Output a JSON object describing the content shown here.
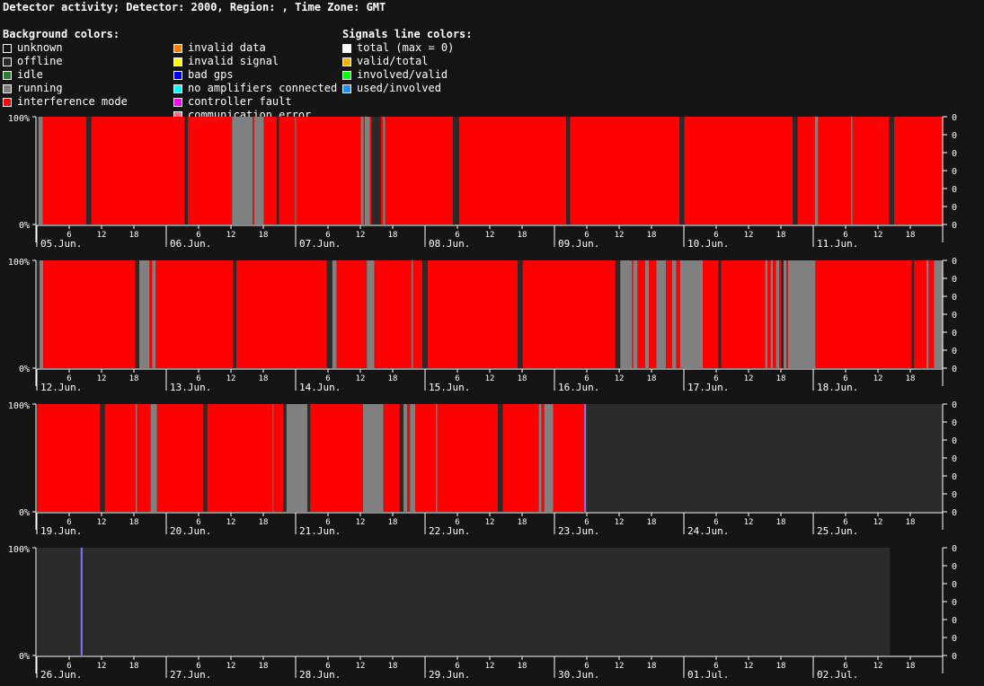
{
  "title": "Detector activity; Detector: 2000, Region: , Time Zone: GMT",
  "legend": {
    "background_heading": "Background colors:",
    "background_col1": [
      {
        "label": "unknown",
        "color": "#141414"
      },
      {
        "label": "offline",
        "color": "#2a2a2a"
      },
      {
        "label": "idle",
        "color": "#2e7d32"
      },
      {
        "label": "running",
        "color": "#808080"
      },
      {
        "label": "interference mode",
        "color": "#ff0000"
      }
    ],
    "background_col2": [
      {
        "label": "invalid data",
        "color": "#ff7f00"
      },
      {
        "label": "invalid signal",
        "color": "#ffff00"
      },
      {
        "label": "bad gps",
        "color": "#0000ff"
      },
      {
        "label": "no amplifiers connected",
        "color": "#00ffff"
      },
      {
        "label": "controller fault",
        "color": "#ff00ff"
      },
      {
        "label": "communication error",
        "color": "#ff6f91"
      }
    ],
    "signals_heading": "Signals line colors:",
    "signals": [
      {
        "label": "total (max = 0)",
        "color": "#ffffff"
      },
      {
        "label": "valid/total",
        "color": "#ffb000"
      },
      {
        "label": "involved/valid",
        "color": "#00ff00"
      },
      {
        "label": "used/involved",
        "color": "#1e90ff"
      }
    ]
  },
  "chart_data": {
    "type": "timeline",
    "y_left_ticks": [
      "100%",
      "0%"
    ],
    "y_right_ticks": [
      "0",
      "0",
      "0",
      "0",
      "0",
      "0"
    ],
    "hour_ticks": [
      "6",
      "12",
      "18"
    ],
    "colors": {
      "offline": "#2a2a2a",
      "running": "#808080",
      "interference": "#ff0000",
      "unknown": "#141414",
      "marker": "#7b7bff"
    },
    "weeks": [
      {
        "days": [
          "05.Jun.",
          "06.Jun.",
          "07.Jun.",
          "08.Jun.",
          "09.Jun.",
          "10.Jun.",
          "11.Jun."
        ],
        "segments": [
          [
            "offline",
            0,
            0.3
          ],
          [
            "running",
            0.3,
            1.1
          ],
          [
            "interference",
            1.1,
            9.2
          ],
          [
            "offline",
            9.2,
            10.1
          ],
          [
            "interference",
            10.1,
            27.4
          ],
          [
            "offline",
            27.4,
            28.0
          ],
          [
            "interference",
            28.0,
            36.2
          ],
          [
            "running",
            36.2,
            40.0
          ],
          [
            "interference",
            40.0,
            40.3
          ],
          [
            "running",
            40.3,
            42.1
          ],
          [
            "interference",
            42.1,
            44.5
          ],
          [
            "offline",
            44.5,
            44.9
          ],
          [
            "interference",
            44.9,
            47.9
          ],
          [
            "running",
            47.9,
            48.1
          ],
          [
            "interference",
            48.1,
            60.1
          ],
          [
            "running",
            60.1,
            60.6
          ],
          [
            "interference",
            60.6,
            60.8
          ],
          [
            "running",
            60.8,
            61.8
          ],
          [
            "interference",
            61.8,
            62.1
          ],
          [
            "offline",
            62.1,
            63.8
          ],
          [
            "interference",
            63.8,
            64.2
          ],
          [
            "running",
            64.2,
            64.6
          ],
          [
            "interference",
            64.6,
            77.2
          ],
          [
            "offline",
            77.2,
            78.3
          ],
          [
            "interference",
            78.3,
            98.2
          ],
          [
            "offline",
            98.2,
            98.9
          ],
          [
            "interference",
            98.9,
            119.2
          ],
          [
            "offline",
            119.2,
            120.1
          ],
          [
            "interference",
            120.1,
            140.2
          ],
          [
            "offline",
            140.2,
            141.1
          ],
          [
            "interference",
            141.1,
            144.3
          ],
          [
            "running",
            144.3,
            144.9
          ],
          [
            "interference",
            144.9,
            151.0
          ],
          [
            "running",
            151.0,
            151.3
          ],
          [
            "interference",
            151.3,
            158.0
          ],
          [
            "offline",
            158.0,
            159.0
          ],
          [
            "interference",
            159.0,
            168.0
          ]
        ],
        "markers": []
      },
      {
        "days": [
          "12.Jun.",
          "13.Jun.",
          "14.Jun.",
          "15.Jun.",
          "16.Jun.",
          "17.Jun.",
          "18.Jun."
        ],
        "segments": [
          [
            "offline",
            0,
            0.5
          ],
          [
            "running",
            0.5,
            1.2
          ],
          [
            "interference",
            1.2,
            18.3
          ],
          [
            "offline",
            18.3,
            19.0
          ],
          [
            "running",
            19.0,
            20.9
          ],
          [
            "interference",
            20.9,
            21.4
          ],
          [
            "running",
            21.4,
            22.0
          ],
          [
            "interference",
            22.0,
            36.4
          ],
          [
            "offline",
            36.4,
            37.0
          ],
          [
            "interference",
            37.0,
            53.8
          ],
          [
            "offline",
            53.8,
            54.8
          ],
          [
            "running",
            54.8,
            55.6
          ],
          [
            "interference",
            55.6,
            61.2
          ],
          [
            "running",
            61.2,
            62.6
          ],
          [
            "interference",
            62.6,
            69.5
          ],
          [
            "running",
            69.5,
            69.8
          ],
          [
            "interference",
            69.8,
            71.5
          ],
          [
            "offline",
            71.5,
            72.5
          ],
          [
            "interference",
            72.5,
            89.2
          ],
          [
            "offline",
            89.2,
            90.1
          ],
          [
            "interference",
            90.1,
            107.3
          ],
          [
            "offline",
            107.3,
            108.2
          ],
          [
            "running",
            108.2,
            110.4
          ],
          [
            "interference",
            110.4,
            110.6
          ],
          [
            "running",
            110.6,
            111.4
          ],
          [
            "interference",
            111.4,
            112.8
          ],
          [
            "running",
            112.8,
            113.5
          ],
          [
            "interference",
            113.5,
            114.9
          ],
          [
            "running",
            114.9,
            116.7
          ],
          [
            "interference",
            116.7,
            117.8
          ],
          [
            "running",
            117.8,
            118.6
          ],
          [
            "interference",
            118.6,
            119.3
          ],
          [
            "running",
            119.3,
            123.5
          ],
          [
            "interference",
            123.5,
            126.4
          ],
          [
            "offline",
            126.4,
            126.9
          ],
          [
            "interference",
            126.9,
            135.1
          ],
          [
            "running",
            135.1,
            135.5
          ],
          [
            "interference",
            135.5,
            136.1
          ],
          [
            "running",
            136.1,
            136.5
          ],
          [
            "interference",
            136.5,
            137.1
          ],
          [
            "running",
            137.1,
            137.7
          ],
          [
            "interference",
            137.7,
            138.1
          ],
          [
            "offline",
            138.1,
            138.5
          ],
          [
            "running",
            138.5,
            139.0
          ],
          [
            "interference",
            139.0,
            139.3
          ],
          [
            "running",
            139.3,
            144.4
          ],
          [
            "interference",
            144.4,
            162.3
          ],
          [
            "offline",
            162.3,
            162.7
          ],
          [
            "interference",
            162.7,
            165.0
          ],
          [
            "running",
            165.0,
            165.4
          ],
          [
            "interference",
            165.4,
            166.4
          ],
          [
            "running",
            166.4,
            168.0
          ]
        ],
        "markers": []
      },
      {
        "days": [
          "19.Jun.",
          "20.Jun.",
          "21.Jun.",
          "22.Jun.",
          "23.Jun.",
          "24.Jun.",
          "25.Jun."
        ],
        "segments": [
          [
            "interference",
            0,
            11.7
          ],
          [
            "offline",
            11.7,
            12.6
          ],
          [
            "interference",
            12.6,
            18.3
          ],
          [
            "running",
            18.3,
            18.6
          ],
          [
            "interference",
            18.6,
            21.1
          ],
          [
            "running",
            21.1,
            22.3
          ],
          [
            "interference",
            22.3,
            30.9
          ],
          [
            "offline",
            30.9,
            31.6
          ],
          [
            "interference",
            31.6,
            43.7
          ],
          [
            "running",
            43.7,
            43.9
          ],
          [
            "interference",
            43.9,
            45.7
          ],
          [
            "offline",
            45.7,
            46.3
          ],
          [
            "running",
            46.3,
            50.2
          ],
          [
            "offline",
            50.2,
            50.7
          ],
          [
            "interference",
            50.7,
            60.5
          ],
          [
            "running",
            60.5,
            64.3
          ],
          [
            "interference",
            64.3,
            67.3
          ],
          [
            "offline",
            67.3,
            68.0
          ],
          [
            "running",
            68.0,
            68.7
          ],
          [
            "interference",
            68.7,
            69.2
          ],
          [
            "running",
            69.2,
            70.2
          ],
          [
            "interference",
            70.2,
            74.0
          ],
          [
            "running",
            74.0,
            74.3
          ],
          [
            "interference",
            74.3,
            85.5
          ],
          [
            "offline",
            85.5,
            86.4
          ],
          [
            "interference",
            86.4,
            93.1
          ],
          [
            "running",
            93.1,
            93.6
          ],
          [
            "interference",
            93.6,
            94.1
          ],
          [
            "running",
            94.1,
            95.8
          ],
          [
            "interference",
            95.8,
            101.7
          ]
        ],
        "markers": [
          101.7
        ]
      },
      {
        "days": [
          "26.Jun.",
          "27.Jun.",
          "28.Jun.",
          "29.Jun.",
          "30.Jun.",
          "01.Jul.",
          "02.Jul."
        ],
        "segments": [],
        "markers": [
          8.3
        ],
        "offline_until": 158.2
      }
    ]
  }
}
